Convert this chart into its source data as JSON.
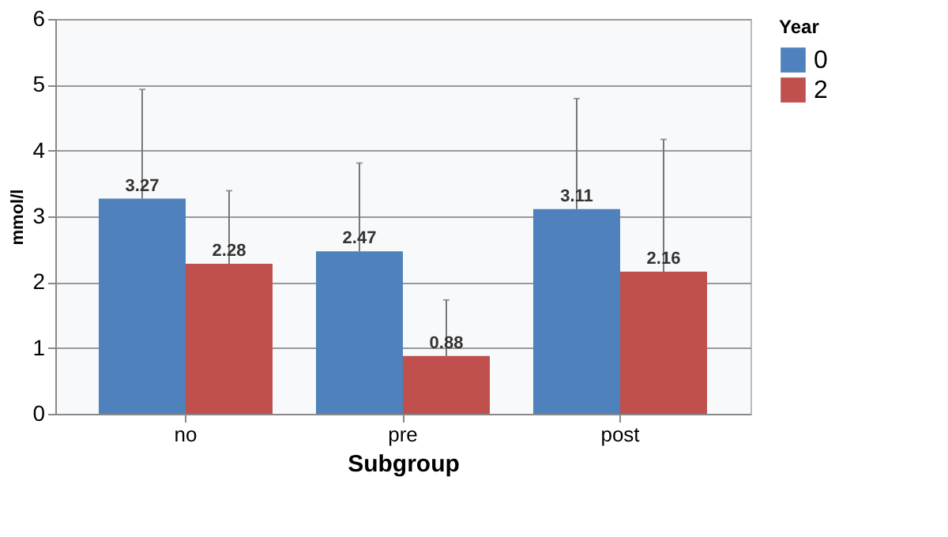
{
  "chart_data": {
    "type": "bar",
    "xlabel": "Subgroup",
    "ylabel": "mmol/l",
    "legend_title": "Year",
    "categories": [
      "no",
      "pre",
      "post"
    ],
    "series": [
      {
        "name": "0",
        "color": "#4f81bd",
        "values": [
          3.27,
          2.47,
          3.11
        ],
        "errors": [
          [
            3.27,
            4.93
          ],
          [
            2.47,
            3.81
          ],
          [
            3.11,
            4.79
          ]
        ]
      },
      {
        "name": "2",
        "color": "#c0504d",
        "values": [
          2.28,
          0.88,
          2.16
        ],
        "errors": [
          [
            2.28,
            3.39
          ],
          [
            0.88,
            1.73
          ],
          [
            2.16,
            4.17
          ]
        ]
      }
    ],
    "ylim": [
      0,
      6
    ],
    "yticks": [
      0,
      1,
      2,
      3,
      4,
      5,
      6
    ],
    "grid": "y",
    "legend": "right",
    "data_labels": true
  }
}
